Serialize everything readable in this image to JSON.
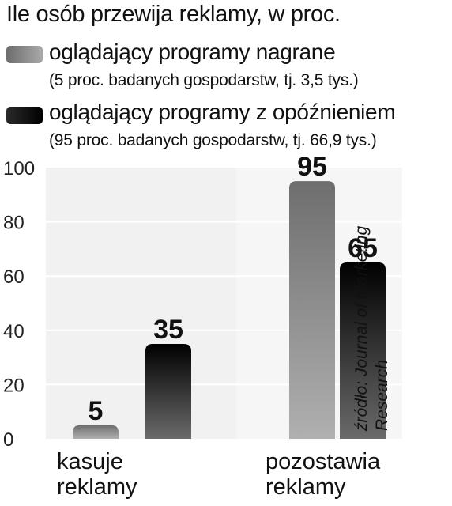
{
  "chart_data": {
    "type": "bar",
    "title": "Ile osób przewija reklamy, w proc.",
    "categories": [
      "kasuje reklamy",
      "pozostawia reklamy"
    ],
    "category_lines": [
      [
        "kasuje",
        "reklamy"
      ],
      [
        "pozostawia",
        "reklamy"
      ]
    ],
    "series": [
      {
        "name": "oglądający programy nagrane",
        "note": "(5 proc. badanych gospodarstw, tj. 3,5 tys.)",
        "values": [
          5,
          95
        ],
        "color": "#8a8a8a"
      },
      {
        "name": "oglądający programy z opóźnieniem",
        "note": "(95 proc. badanych gospodarstw, tj. 66,9 tys.)",
        "values": [
          35,
          65
        ],
        "color": "#1a1a1a"
      }
    ],
    "ylim": [
      0,
      100
    ],
    "yticks": [
      0,
      20,
      40,
      60,
      80,
      100
    ],
    "grid": true,
    "legend": "top-left",
    "source": [
      "źródło: Journal of Marketing",
      "Research"
    ]
  }
}
